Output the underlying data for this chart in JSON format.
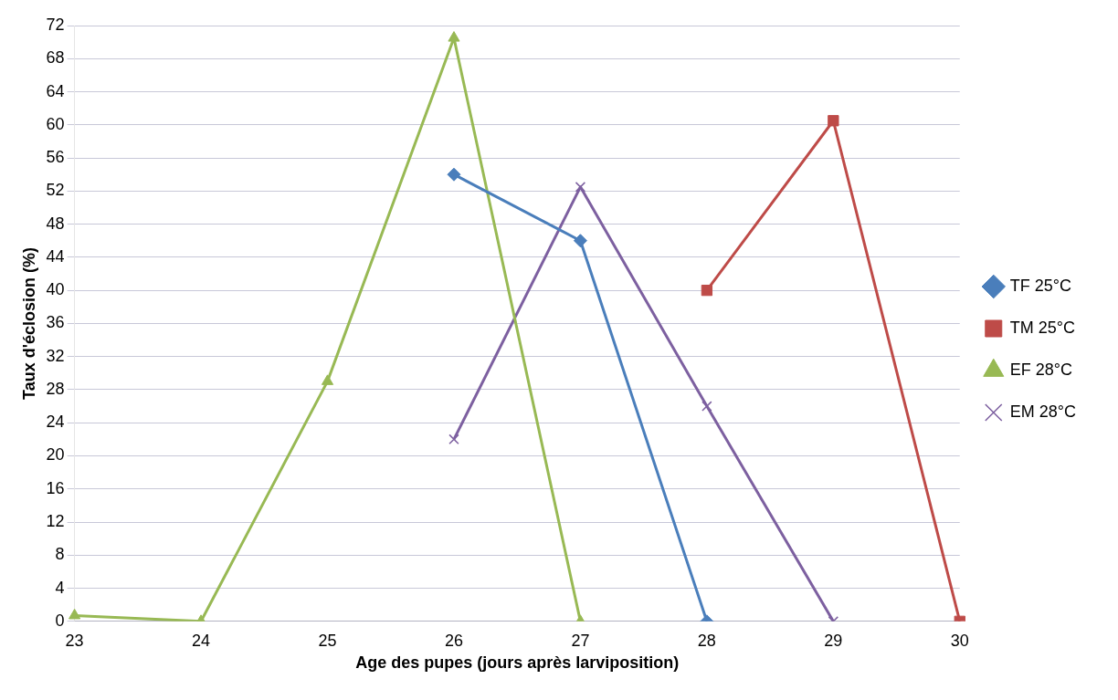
{
  "chart_data": {
    "type": "line",
    "xlabel": "Age des pupes (jours après larviposition)",
    "ylabel": "Taux d'éclosion (%)",
    "categories": [
      "23",
      "24",
      "25",
      "26",
      "27",
      "28",
      "29",
      "30"
    ],
    "series": [
      {
        "name": "TF 25°C",
        "color": "#4a7ebb",
        "marker": "diamond",
        "values": [
          null,
          null,
          null,
          54,
          46,
          0,
          null,
          null
        ]
      },
      {
        "name": "TM 25°C",
        "color": "#be4b48",
        "marker": "square",
        "values": [
          null,
          null,
          null,
          null,
          null,
          40,
          60.5,
          0
        ]
      },
      {
        "name": "EF 28°C",
        "color": "#98b954",
        "marker": "triangle",
        "values": [
          0.7,
          0,
          29,
          70.5,
          0,
          null,
          null,
          null
        ]
      },
      {
        "name": "EM 28°C",
        "color": "#7d60a0",
        "marker": "cross",
        "values": [
          null,
          null,
          null,
          22,
          52.5,
          26,
          0,
          null
        ]
      }
    ],
    "ylim": [
      0,
      72
    ],
    "yticks": [
      0,
      4,
      8,
      12,
      16,
      20,
      24,
      28,
      32,
      36,
      40,
      44,
      48,
      52,
      56,
      60,
      64,
      68,
      72
    ],
    "grid": "y",
    "legend": "right"
  }
}
